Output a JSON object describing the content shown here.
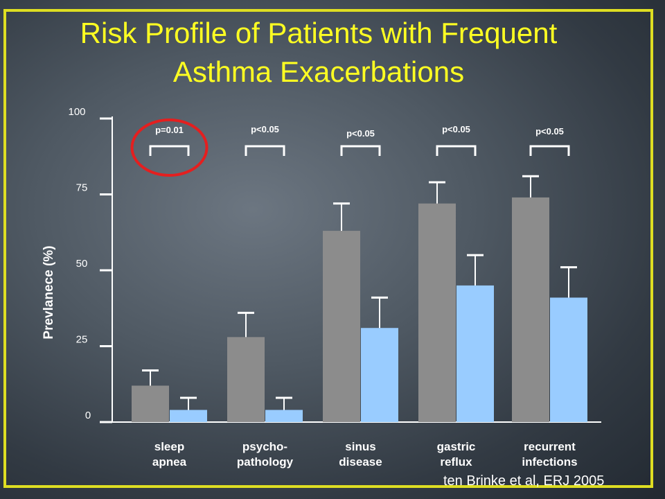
{
  "slide": {
    "title_line1": "Risk Profile of Patients with Frequent",
    "title_line2": "Asthma Exacerbations",
    "citation": "ten Brinke et al, ERJ 2005"
  },
  "colors": {
    "background": "#4f5963",
    "frame": "#dede22",
    "title": "#ffff22",
    "series_gray": "#8c8c8c",
    "series_blue": "#99ccff",
    "highlight_circle": "#e41f1f"
  },
  "chart_data": {
    "type": "bar",
    "title": "",
    "ylabel": "Prevlanece (%)",
    "xlabel": "",
    "ylim": [
      0,
      100
    ],
    "yticks": [
      0,
      25,
      50,
      75,
      100
    ],
    "categories": [
      "sleep apnea",
      "psycho-pathology",
      "sinus disease",
      "gastric reflux",
      "recurrent infections"
    ],
    "category_lines": [
      [
        "sleep",
        "apnea"
      ],
      [
        "psycho-",
        "pathology"
      ],
      [
        "sinus",
        "disease"
      ],
      [
        "gastric",
        "reflux"
      ],
      [
        "recurrent",
        "infections"
      ]
    ],
    "series": [
      {
        "color": "#8c8c8c",
        "values": [
          12,
          28,
          63,
          72,
          74
        ],
        "error_upper": [
          17,
          36,
          72,
          79,
          81
        ]
      },
      {
        "color": "#99ccff",
        "values": [
          4,
          4,
          31,
          45,
          41
        ],
        "error_upper": [
          8,
          8,
          41,
          55,
          51
        ]
      }
    ],
    "annotations": [
      "p=0.01",
      "p<0.05",
      "p<0.05",
      "p<0.05",
      "p<0.05"
    ],
    "highlighted_annotation": 0,
    "legend": "none",
    "grid": false
  }
}
